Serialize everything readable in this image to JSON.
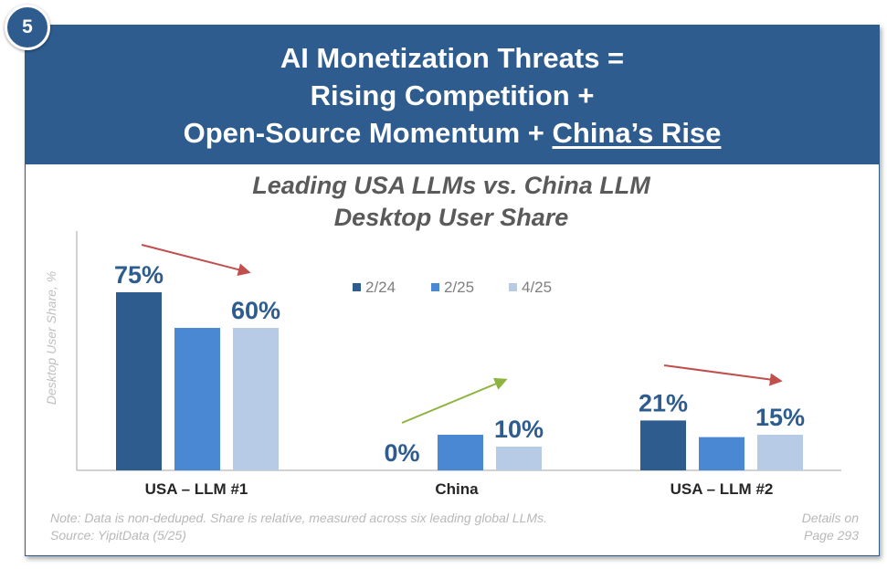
{
  "badge": "5",
  "header": {
    "line1": "AI Monetization Threats =",
    "line2": "Rising Competition +",
    "line3_prefix": "Open-Source Momentum + ",
    "line3_underlined": "China’s Rise"
  },
  "footer": {
    "note": "Note: Data is non-deduped. Share is relative, measured across six leading global LLMs.",
    "source": "Source: YipitData (5/25)",
    "details_line1": "Details on",
    "details_line2": "Page 293"
  },
  "chart_data": {
    "type": "bar",
    "title_line1": "Leading USA LLMs vs. China LLM",
    "title_line2": "Desktop User Share",
    "ylabel": "Desktop User Share, %",
    "ylim": [
      0,
      100
    ],
    "categories": [
      "USA – LLM #1",
      "China",
      "USA – LLM #2"
    ],
    "series": [
      {
        "name": "2/24",
        "color": "#2e5c8e",
        "values": [
          75,
          0,
          21
        ]
      },
      {
        "name": "2/25",
        "color": "#4a88d4",
        "values": [
          60,
          15,
          14
        ]
      },
      {
        "name": "4/25",
        "color": "#b7cbe6",
        "values": [
          60,
          10,
          15
        ]
      }
    ],
    "data_labels": [
      {
        "text": "75%",
        "category": 0,
        "series": 0
      },
      {
        "text": "60%",
        "category": 0,
        "series": 2
      },
      {
        "text": "0%",
        "category": 1,
        "series": 0
      },
      {
        "text": "10%",
        "category": 1,
        "series": 2
      },
      {
        "text": "21%",
        "category": 2,
        "series": 0
      },
      {
        "text": "15%",
        "category": 2,
        "series": 2
      }
    ],
    "trend_arrows": [
      {
        "category": 0,
        "direction": "down",
        "color": "#c0504d"
      },
      {
        "category": 1,
        "direction": "up",
        "color": "#8cb43f"
      },
      {
        "category": 2,
        "direction": "down",
        "color": "#c0504d"
      }
    ],
    "label_color": "#2e5c8e"
  }
}
